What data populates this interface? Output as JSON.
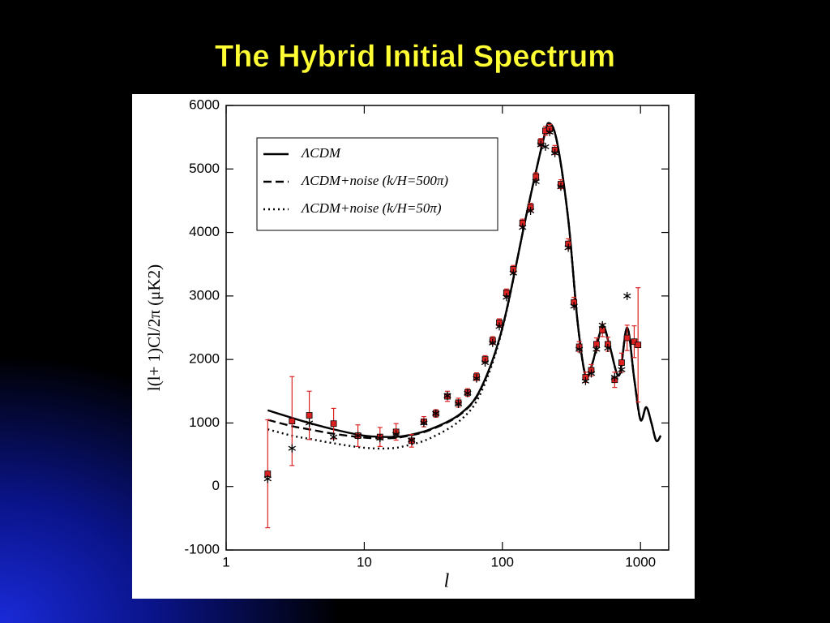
{
  "chart_data": {
    "type": "line",
    "title": "The Hybrid Initial Spectrum",
    "x_label": "l",
    "y_label": "l(l+ 1)Cl/2π (μK2)",
    "xscale": "log",
    "xlim": [
      1,
      1600
    ],
    "xticks": [
      1,
      10,
      100,
      1000
    ],
    "ylim": [
      -1000,
      6000
    ],
    "yticks": [
      -1000,
      0,
      1000,
      2000,
      3000,
      4000,
      5000,
      6000
    ],
    "legend": "upper-left",
    "x": [
      2,
      3,
      4,
      6,
      10,
      15,
      20,
      30,
      50,
      70,
      100,
      150,
      200,
      220,
      250,
      300,
      350,
      400,
      450,
      530,
      600,
      700,
      800,
      900,
      1000,
      1100,
      1200,
      1300,
      1400
    ],
    "series": [
      {
        "name": "ΛCDM",
        "color": "#000000",
        "dash": "solid",
        "values": [
          1200,
          1080,
          1000,
          900,
          800,
          780,
          800,
          900,
          1150,
          1550,
          2500,
          4300,
          5500,
          5720,
          5400,
          4200,
          2600,
          1750,
          1950,
          2520,
          2200,
          1750,
          2500,
          1700,
          1050,
          1250,
          1000,
          720,
          800
        ]
      },
      {
        "name": "ΛCDM+noise (k/H=500π)",
        "color": "#000000",
        "dash": "dashed",
        "values": [
          1050,
          950,
          900,
          830,
          770,
          760,
          790,
          890,
          1140,
          1540,
          2500,
          4300,
          5500,
          5720,
          5400,
          4200,
          2600,
          1750,
          1950,
          2520,
          2200,
          1750,
          2500,
          1700,
          1050,
          1250,
          1000,
          720,
          800
        ]
      },
      {
        "name": "ΛCDM+noise (k/H=50π)",
        "color": "#000000",
        "dash": "dotted",
        "values": [
          900,
          800,
          750,
          680,
          610,
          600,
          640,
          760,
          1050,
          1480,
          2480,
          4300,
          5500,
          5720,
          5400,
          4200,
          2600,
          1750,
          1950,
          2520,
          2200,
          1750,
          2500,
          1700,
          1050,
          1250,
          1000,
          720,
          800
        ]
      }
    ],
    "points": [
      {
        "marker": "square",
        "color": "#dd2222",
        "error_color": "#dd2222",
        "x": [
          2,
          3,
          4,
          6,
          9,
          13,
          17,
          22,
          27,
          33,
          40,
          48,
          56,
          65,
          75,
          85,
          95,
          107,
          120,
          140,
          160,
          175,
          190,
          205,
          220,
          240,
          265,
          300,
          330,
          360,
          400,
          440,
          480,
          530,
          580,
          650,
          730,
          800,
          900,
          960
        ],
        "values": [
          200,
          1030,
          1120,
          990,
          800,
          780,
          860,
          720,
          1020,
          1150,
          1420,
          1320,
          1480,
          1730,
          2000,
          2300,
          2580,
          3050,
          3420,
          4150,
          4400,
          4880,
          5420,
          5600,
          5630,
          5300,
          4760,
          3820,
          2900,
          2200,
          1720,
          1830,
          2240,
          2460,
          2240,
          1680,
          1950,
          2340,
          2280,
          2230
        ],
        "errors": [
          850,
          700,
          380,
          240,
          170,
          150,
          130,
          100,
          80,
          60,
          80,
          70,
          60,
          60,
          60,
          60,
          60,
          60,
          60,
          60,
          60,
          60,
          60,
          70,
          70,
          70,
          70,
          80,
          80,
          80,
          80,
          90,
          100,
          100,
          110,
          120,
          150,
          200,
          250,
          900
        ]
      },
      {
        "marker": "star",
        "color": "#000000",
        "x": [
          2,
          3,
          4,
          6,
          9,
          13,
          17,
          22,
          27,
          33,
          40,
          48,
          56,
          65,
          75,
          85,
          95,
          107,
          120,
          140,
          160,
          175,
          190,
          205,
          220,
          240,
          265,
          300,
          330,
          360,
          400,
          440,
          480,
          530,
          580,
          650,
          730,
          800
        ],
        "values": [
          120,
          600,
          1000,
          780,
          800,
          760,
          820,
          730,
          1000,
          1150,
          1430,
          1300,
          1470,
          1700,
          1950,
          2260,
          2520,
          2980,
          3360,
          4080,
          4340,
          4800,
          5380,
          5350,
          5580,
          5250,
          4720,
          3760,
          2840,
          2160,
          1660,
          1780,
          2160,
          2540,
          2180,
          1720,
          1840,
          3000
        ]
      }
    ]
  }
}
